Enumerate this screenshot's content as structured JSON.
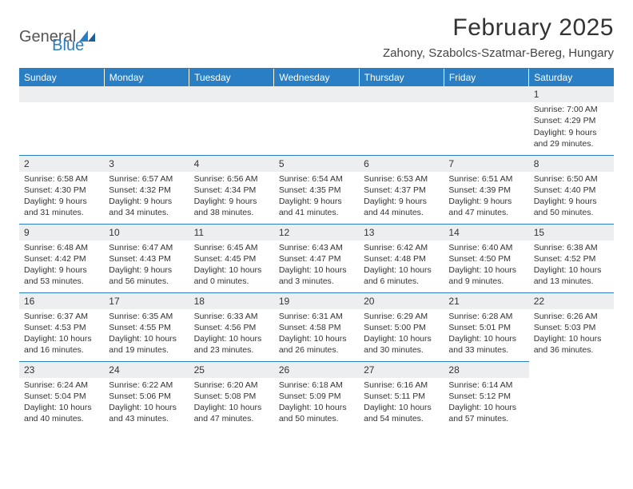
{
  "brand": {
    "part1": "General",
    "part2": "Blue"
  },
  "title": "February 2025",
  "subtitle": "Zahony, Szabolcs-Szatmar-Bereg, Hungary",
  "accent_color": "#2a7ec4",
  "daynum_bg": "#eceeef",
  "text_color": "#333333",
  "weekdays": [
    "Sunday",
    "Monday",
    "Tuesday",
    "Wednesday",
    "Thursday",
    "Friday",
    "Saturday"
  ],
  "weeks": [
    [
      null,
      null,
      null,
      null,
      null,
      null,
      {
        "day": "1",
        "sunrise": "Sunrise: 7:00 AM",
        "sunset": "Sunset: 4:29 PM",
        "daylight": "Daylight: 9 hours and 29 minutes."
      }
    ],
    [
      {
        "day": "2",
        "sunrise": "Sunrise: 6:58 AM",
        "sunset": "Sunset: 4:30 PM",
        "daylight": "Daylight: 9 hours and 31 minutes."
      },
      {
        "day": "3",
        "sunrise": "Sunrise: 6:57 AM",
        "sunset": "Sunset: 4:32 PM",
        "daylight": "Daylight: 9 hours and 34 minutes."
      },
      {
        "day": "4",
        "sunrise": "Sunrise: 6:56 AM",
        "sunset": "Sunset: 4:34 PM",
        "daylight": "Daylight: 9 hours and 38 minutes."
      },
      {
        "day": "5",
        "sunrise": "Sunrise: 6:54 AM",
        "sunset": "Sunset: 4:35 PM",
        "daylight": "Daylight: 9 hours and 41 minutes."
      },
      {
        "day": "6",
        "sunrise": "Sunrise: 6:53 AM",
        "sunset": "Sunset: 4:37 PM",
        "daylight": "Daylight: 9 hours and 44 minutes."
      },
      {
        "day": "7",
        "sunrise": "Sunrise: 6:51 AM",
        "sunset": "Sunset: 4:39 PM",
        "daylight": "Daylight: 9 hours and 47 minutes."
      },
      {
        "day": "8",
        "sunrise": "Sunrise: 6:50 AM",
        "sunset": "Sunset: 4:40 PM",
        "daylight": "Daylight: 9 hours and 50 minutes."
      }
    ],
    [
      {
        "day": "9",
        "sunrise": "Sunrise: 6:48 AM",
        "sunset": "Sunset: 4:42 PM",
        "daylight": "Daylight: 9 hours and 53 minutes."
      },
      {
        "day": "10",
        "sunrise": "Sunrise: 6:47 AM",
        "sunset": "Sunset: 4:43 PM",
        "daylight": "Daylight: 9 hours and 56 minutes."
      },
      {
        "day": "11",
        "sunrise": "Sunrise: 6:45 AM",
        "sunset": "Sunset: 4:45 PM",
        "daylight": "Daylight: 10 hours and 0 minutes."
      },
      {
        "day": "12",
        "sunrise": "Sunrise: 6:43 AM",
        "sunset": "Sunset: 4:47 PM",
        "daylight": "Daylight: 10 hours and 3 minutes."
      },
      {
        "day": "13",
        "sunrise": "Sunrise: 6:42 AM",
        "sunset": "Sunset: 4:48 PM",
        "daylight": "Daylight: 10 hours and 6 minutes."
      },
      {
        "day": "14",
        "sunrise": "Sunrise: 6:40 AM",
        "sunset": "Sunset: 4:50 PM",
        "daylight": "Daylight: 10 hours and 9 minutes."
      },
      {
        "day": "15",
        "sunrise": "Sunrise: 6:38 AM",
        "sunset": "Sunset: 4:52 PM",
        "daylight": "Daylight: 10 hours and 13 minutes."
      }
    ],
    [
      {
        "day": "16",
        "sunrise": "Sunrise: 6:37 AM",
        "sunset": "Sunset: 4:53 PM",
        "daylight": "Daylight: 10 hours and 16 minutes."
      },
      {
        "day": "17",
        "sunrise": "Sunrise: 6:35 AM",
        "sunset": "Sunset: 4:55 PM",
        "daylight": "Daylight: 10 hours and 19 minutes."
      },
      {
        "day": "18",
        "sunrise": "Sunrise: 6:33 AM",
        "sunset": "Sunset: 4:56 PM",
        "daylight": "Daylight: 10 hours and 23 minutes."
      },
      {
        "day": "19",
        "sunrise": "Sunrise: 6:31 AM",
        "sunset": "Sunset: 4:58 PM",
        "daylight": "Daylight: 10 hours and 26 minutes."
      },
      {
        "day": "20",
        "sunrise": "Sunrise: 6:29 AM",
        "sunset": "Sunset: 5:00 PM",
        "daylight": "Daylight: 10 hours and 30 minutes."
      },
      {
        "day": "21",
        "sunrise": "Sunrise: 6:28 AM",
        "sunset": "Sunset: 5:01 PM",
        "daylight": "Daylight: 10 hours and 33 minutes."
      },
      {
        "day": "22",
        "sunrise": "Sunrise: 6:26 AM",
        "sunset": "Sunset: 5:03 PM",
        "daylight": "Daylight: 10 hours and 36 minutes."
      }
    ],
    [
      {
        "day": "23",
        "sunrise": "Sunrise: 6:24 AM",
        "sunset": "Sunset: 5:04 PM",
        "daylight": "Daylight: 10 hours and 40 minutes."
      },
      {
        "day": "24",
        "sunrise": "Sunrise: 6:22 AM",
        "sunset": "Sunset: 5:06 PM",
        "daylight": "Daylight: 10 hours and 43 minutes."
      },
      {
        "day": "25",
        "sunrise": "Sunrise: 6:20 AM",
        "sunset": "Sunset: 5:08 PM",
        "daylight": "Daylight: 10 hours and 47 minutes."
      },
      {
        "day": "26",
        "sunrise": "Sunrise: 6:18 AM",
        "sunset": "Sunset: 5:09 PM",
        "daylight": "Daylight: 10 hours and 50 minutes."
      },
      {
        "day": "27",
        "sunrise": "Sunrise: 6:16 AM",
        "sunset": "Sunset: 5:11 PM",
        "daylight": "Daylight: 10 hours and 54 minutes."
      },
      {
        "day": "28",
        "sunrise": "Sunrise: 6:14 AM",
        "sunset": "Sunset: 5:12 PM",
        "daylight": "Daylight: 10 hours and 57 minutes."
      },
      null
    ]
  ]
}
